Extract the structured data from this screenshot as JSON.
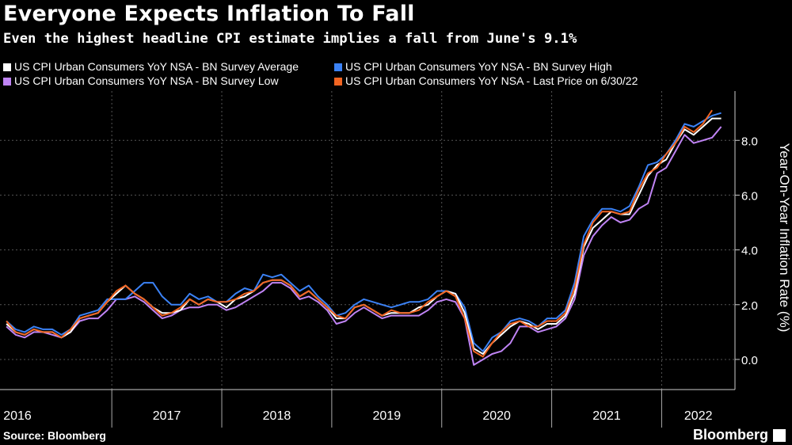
{
  "title": "Everyone Expects Inflation To Fall",
  "subtitle": "Even the highest headline CPI estimate implies a fall from June's 9.1%",
  "source": "Source: Bloomberg",
  "brand": "Bloomberg",
  "colors": {
    "background": "#000000",
    "grid": "#555555",
    "axis": "#cccccc"
  },
  "chart_data": {
    "type": "line",
    "ylabel": "Year-On-Year Inflation Rate (%)",
    "ylim": [
      -1.1,
      9.8
    ],
    "yticks": [
      0,
      2,
      4,
      6,
      8
    ],
    "ytick_labels": [
      "0.0",
      "2.0",
      "4.0",
      "6.0",
      "8.0"
    ],
    "xlim": [
      "2016-01",
      "2022-08"
    ],
    "xtick_labels": [
      "2016",
      "2017",
      "2018",
      "2019",
      "2020",
      "2021",
      "2022"
    ],
    "grid": true,
    "legend_position": "top-left",
    "series": [
      {
        "name": "US CPI Urban Consumers YoY NSA - BN Survey Average",
        "color": "#ffffff",
        "x": [
          "2016-01",
          "2016-02",
          "2016-03",
          "2016-04",
          "2016-05",
          "2016-06",
          "2016-07",
          "2016-08",
          "2016-09",
          "2016-10",
          "2016-11",
          "2016-12",
          "2017-01",
          "2017-02",
          "2017-03",
          "2017-04",
          "2017-05",
          "2017-06",
          "2017-07",
          "2017-08",
          "2017-09",
          "2017-10",
          "2017-11",
          "2017-12",
          "2018-01",
          "2018-02",
          "2018-03",
          "2018-04",
          "2018-05",
          "2018-06",
          "2018-07",
          "2018-08",
          "2018-09",
          "2018-10",
          "2018-11",
          "2018-12",
          "2019-01",
          "2019-02",
          "2019-03",
          "2019-04",
          "2019-05",
          "2019-06",
          "2019-07",
          "2019-08",
          "2019-09",
          "2019-10",
          "2019-11",
          "2019-12",
          "2020-01",
          "2020-02",
          "2020-03",
          "2020-04",
          "2020-05",
          "2020-06",
          "2020-07",
          "2020-08",
          "2020-09",
          "2020-10",
          "2020-11",
          "2020-12",
          "2021-01",
          "2021-02",
          "2021-03",
          "2021-04",
          "2021-05",
          "2021-06",
          "2021-07",
          "2021-08",
          "2021-09",
          "2021-10",
          "2021-11",
          "2021-12",
          "2022-01",
          "2022-02",
          "2022-03",
          "2022-04",
          "2022-05",
          "2022-06",
          "2022-07"
        ],
        "y": [
          1.3,
          1.0,
          0.9,
          1.1,
          1.0,
          1.0,
          0.8,
          1.0,
          1.5,
          1.6,
          1.7,
          2.1,
          2.4,
          2.7,
          2.4,
          2.2,
          1.9,
          1.7,
          1.7,
          1.8,
          2.2,
          2.0,
          2.2,
          2.1,
          1.9,
          2.2,
          2.3,
          2.5,
          2.8,
          2.9,
          2.9,
          2.7,
          2.3,
          2.5,
          2.2,
          1.9,
          1.5,
          1.5,
          1.9,
          2.0,
          1.8,
          1.6,
          1.7,
          1.7,
          1.7,
          1.9,
          2.0,
          2.3,
          2.5,
          2.4,
          1.7,
          0.4,
          0.2,
          0.6,
          0.9,
          1.2,
          1.4,
          1.3,
          1.1,
          1.3,
          1.3,
          1.6,
          2.4,
          4.1,
          4.8,
          5.1,
          5.4,
          5.3,
          5.3,
          6.0,
          6.7,
          7.1,
          7.3,
          7.9,
          8.4,
          8.2,
          8.5,
          8.8,
          8.8
        ]
      },
      {
        "name": "US CPI Urban Consumers YoY NSA - BN Survey Low",
        "color": "#c084f5",
        "x": [
          "2016-01",
          "2016-02",
          "2016-03",
          "2016-04",
          "2016-05",
          "2016-06",
          "2016-07",
          "2016-08",
          "2016-09",
          "2016-10",
          "2016-11",
          "2016-12",
          "2017-01",
          "2017-02",
          "2017-03",
          "2017-04",
          "2017-05",
          "2017-06",
          "2017-07",
          "2017-08",
          "2017-09",
          "2017-10",
          "2017-11",
          "2017-12",
          "2018-01",
          "2018-02",
          "2018-03",
          "2018-04",
          "2018-05",
          "2018-06",
          "2018-07",
          "2018-08",
          "2018-09",
          "2018-10",
          "2018-11",
          "2018-12",
          "2019-01",
          "2019-02",
          "2019-03",
          "2019-04",
          "2019-05",
          "2019-06",
          "2019-07",
          "2019-08",
          "2019-09",
          "2019-10",
          "2019-11",
          "2019-12",
          "2020-01",
          "2020-02",
          "2020-03",
          "2020-04",
          "2020-05",
          "2020-06",
          "2020-07",
          "2020-08",
          "2020-09",
          "2020-10",
          "2020-11",
          "2020-12",
          "2021-01",
          "2021-02",
          "2021-03",
          "2021-04",
          "2021-05",
          "2021-06",
          "2021-07",
          "2021-08",
          "2021-09",
          "2021-10",
          "2021-11",
          "2021-12",
          "2022-01",
          "2022-02",
          "2022-03",
          "2022-04",
          "2022-05",
          "2022-06",
          "2022-07"
        ],
        "y": [
          1.2,
          0.9,
          0.8,
          1.0,
          1.0,
          0.9,
          0.8,
          1.0,
          1.4,
          1.5,
          1.5,
          1.8,
          2.2,
          2.2,
          2.3,
          2.1,
          1.8,
          1.5,
          1.6,
          1.8,
          1.9,
          1.9,
          2.0,
          2.0,
          1.8,
          1.9,
          2.1,
          2.3,
          2.5,
          2.8,
          2.8,
          2.6,
          2.2,
          2.3,
          2.1,
          1.8,
          1.3,
          1.4,
          1.7,
          1.9,
          1.7,
          1.5,
          1.6,
          1.6,
          1.6,
          1.6,
          1.8,
          2.1,
          2.2,
          2.1,
          1.5,
          -0.2,
          0.0,
          0.2,
          0.3,
          0.6,
          1.2,
          1.2,
          1.0,
          1.1,
          1.2,
          1.5,
          2.2,
          3.8,
          4.5,
          4.9,
          5.2,
          5.0,
          5.1,
          5.5,
          5.7,
          6.8,
          7.0,
          7.6,
          8.2,
          7.9,
          8.0,
          8.1,
          8.5
        ]
      },
      {
        "name": "US CPI Urban Consumers YoY NSA - BN Survey High",
        "color": "#3b82f6",
        "x": [
          "2016-01",
          "2016-02",
          "2016-03",
          "2016-04",
          "2016-05",
          "2016-06",
          "2016-07",
          "2016-08",
          "2016-09",
          "2016-10",
          "2016-11",
          "2016-12",
          "2017-01",
          "2017-02",
          "2017-03",
          "2017-04",
          "2017-05",
          "2017-06",
          "2017-07",
          "2017-08",
          "2017-09",
          "2017-10",
          "2017-11",
          "2017-12",
          "2018-01",
          "2018-02",
          "2018-03",
          "2018-04",
          "2018-05",
          "2018-06",
          "2018-07",
          "2018-08",
          "2018-09",
          "2018-10",
          "2018-11",
          "2018-12",
          "2019-01",
          "2019-02",
          "2019-03",
          "2019-04",
          "2019-05",
          "2019-06",
          "2019-07",
          "2019-08",
          "2019-09",
          "2019-10",
          "2019-11",
          "2019-12",
          "2020-01",
          "2020-02",
          "2020-03",
          "2020-04",
          "2020-05",
          "2020-06",
          "2020-07",
          "2020-08",
          "2020-09",
          "2020-10",
          "2020-11",
          "2020-12",
          "2021-01",
          "2021-02",
          "2021-03",
          "2021-04",
          "2021-05",
          "2021-06",
          "2021-07",
          "2021-08",
          "2021-09",
          "2021-10",
          "2021-11",
          "2021-12",
          "2022-01",
          "2022-02",
          "2022-03",
          "2022-04",
          "2022-05",
          "2022-06",
          "2022-07"
        ],
        "y": [
          1.4,
          1.1,
          1.0,
          1.2,
          1.1,
          1.1,
          0.9,
          1.1,
          1.6,
          1.7,
          1.8,
          2.2,
          2.2,
          2.2,
          2.5,
          2.8,
          2.8,
          2.3,
          2.0,
          2.0,
          2.4,
          2.2,
          2.3,
          2.1,
          2.1,
          2.4,
          2.6,
          2.5,
          3.1,
          3.0,
          3.1,
          2.8,
          2.5,
          2.7,
          2.3,
          2.0,
          1.6,
          1.7,
          2.0,
          2.2,
          2.1,
          2.0,
          1.9,
          2.0,
          2.1,
          2.1,
          2.2,
          2.5,
          2.5,
          2.4,
          1.9,
          0.6,
          0.3,
          0.8,
          1.0,
          1.4,
          1.5,
          1.4,
          1.2,
          1.5,
          1.5,
          1.8,
          2.8,
          4.5,
          5.1,
          5.5,
          5.5,
          5.4,
          5.6,
          6.3,
          7.1,
          7.2,
          7.5,
          8.0,
          8.6,
          8.5,
          8.7,
          8.9,
          9.0
        ]
      },
      {
        "name": "US CPI Urban Consumers YoY NSA - Last Price on 6/30/22",
        "color": "#f26522",
        "x": [
          "2016-01",
          "2016-02",
          "2016-03",
          "2016-04",
          "2016-05",
          "2016-06",
          "2016-07",
          "2016-08",
          "2016-09",
          "2016-10",
          "2016-11",
          "2016-12",
          "2017-01",
          "2017-02",
          "2017-03",
          "2017-04",
          "2017-05",
          "2017-06",
          "2017-07",
          "2017-08",
          "2017-09",
          "2017-10",
          "2017-11",
          "2017-12",
          "2018-01",
          "2018-02",
          "2018-03",
          "2018-04",
          "2018-05",
          "2018-06",
          "2018-07",
          "2018-08",
          "2018-09",
          "2018-10",
          "2018-11",
          "2018-12",
          "2019-01",
          "2019-02",
          "2019-03",
          "2019-04",
          "2019-05",
          "2019-06",
          "2019-07",
          "2019-08",
          "2019-09",
          "2019-10",
          "2019-11",
          "2019-12",
          "2020-01",
          "2020-02",
          "2020-03",
          "2020-04",
          "2020-05",
          "2020-06",
          "2020-07",
          "2020-08",
          "2020-09",
          "2020-10",
          "2020-11",
          "2020-12",
          "2021-01",
          "2021-02",
          "2021-03",
          "2021-04",
          "2021-05",
          "2021-06",
          "2021-07",
          "2021-08",
          "2021-09",
          "2021-10",
          "2021-11",
          "2021-12",
          "2022-01",
          "2022-02",
          "2022-03",
          "2022-04",
          "2022-05",
          "2022-06"
        ],
        "y": [
          1.4,
          1.0,
          0.9,
          1.1,
          1.0,
          1.0,
          0.8,
          1.1,
          1.5,
          1.6,
          1.7,
          2.1,
          2.5,
          2.7,
          2.4,
          2.2,
          1.9,
          1.6,
          1.7,
          1.9,
          2.2,
          2.0,
          2.2,
          2.1,
          2.1,
          2.2,
          2.4,
          2.5,
          2.8,
          2.9,
          2.9,
          2.7,
          2.3,
          2.5,
          2.2,
          1.9,
          1.6,
          1.5,
          1.9,
          2.0,
          1.8,
          1.6,
          1.8,
          1.7,
          1.7,
          1.8,
          2.1,
          2.3,
          2.5,
          2.3,
          1.5,
          0.3,
          0.1,
          0.6,
          1.0,
          1.3,
          1.4,
          1.2,
          1.2,
          1.4,
          1.4,
          1.7,
          2.6,
          4.2,
          5.0,
          5.4,
          5.4,
          5.3,
          5.4,
          6.2,
          6.8,
          7.0,
          7.5,
          7.9,
          8.5,
          8.3,
          8.6,
          9.1
        ]
      }
    ]
  }
}
